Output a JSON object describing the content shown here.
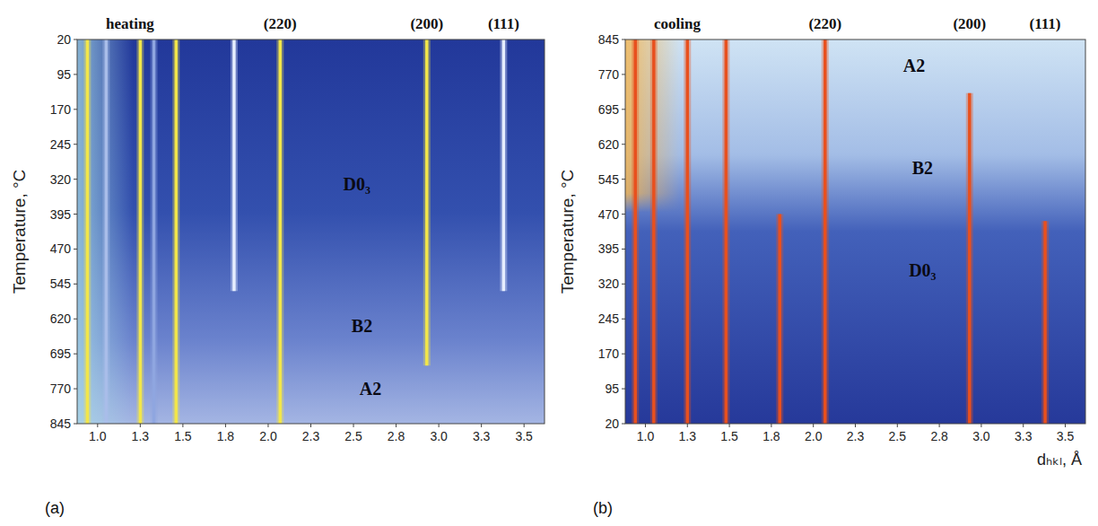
{
  "chart_data": [
    {
      "type": "line",
      "title": "heating",
      "panel": "(a)",
      "ylabel": "Temperature, °C",
      "xlim": [
        0.88,
        3.62
      ],
      "ylim": [
        845,
        20
      ],
      "xticks": [
        {
          "value": 1.0,
          "label": "1.0"
        },
        {
          "value": 1.25,
          "label": "1.3"
        },
        {
          "value": 1.5,
          "label": "1.5"
        },
        {
          "value": 1.75,
          "label": "1.8"
        },
        {
          "value": 2.0,
          "label": "2.0"
        },
        {
          "value": 2.25,
          "label": "2.3"
        },
        {
          "value": 2.5,
          "label": "2.5"
        },
        {
          "value": 2.75,
          "label": "2.8"
        },
        {
          "value": 3.0,
          "label": "3.0"
        },
        {
          "value": 3.25,
          "label": "3.3"
        },
        {
          "value": 3.5,
          "label": "3.5"
        }
      ],
      "yticks": [
        20,
        95,
        170,
        245,
        320,
        395,
        470,
        545,
        620,
        695,
        770,
        845
      ],
      "series": [
        {
          "x": [
            0.94,
            0.94
          ],
          "values": [
            20,
            845
          ],
          "color": "#f2e64a"
        },
        {
          "x": [
            1.05,
            1.05
          ],
          "values": [
            20,
            845
          ],
          "color": "#a9bde9"
        },
        {
          "x": [
            1.25,
            1.25
          ],
          "values": [
            20,
            845
          ],
          "color": "#f2e64a"
        },
        {
          "x": [
            1.33,
            1.33
          ],
          "values": [
            20,
            845
          ],
          "color": "#8fa6e0"
        },
        {
          "x": [
            1.46,
            1.46
          ],
          "values": [
            20,
            845
          ],
          "color": "#f2e64a"
        },
        {
          "x": [
            1.8,
            1.8
          ],
          "values": [
            20,
            560
          ],
          "color": "#e6eeff"
        },
        {
          "x": [
            2.07,
            2.07
          ],
          "values": [
            20,
            845
          ],
          "color": "#f2e64a"
        },
        {
          "x": [
            2.93,
            2.93
          ],
          "values": [
            20,
            720
          ],
          "color": "#f2e64a"
        },
        {
          "x": [
            3.38,
            3.38
          ],
          "values": [
            20,
            560
          ],
          "color": "#e6eeff"
        }
      ],
      "peak_labels": [
        {
          "text": "(220)",
          "x": 2.07
        },
        {
          "text": "(200)",
          "x": 2.93
        },
        {
          "text": "(111)",
          "x": 3.38
        }
      ],
      "annotations": [
        {
          "text": "D0₃",
          "x": 2.52,
          "y": 330
        },
        {
          "text": "B2",
          "x": 2.55,
          "y": 635
        },
        {
          "text": "A2",
          "x": 2.6,
          "y": 770
        }
      ]
    },
    {
      "type": "line",
      "title": "cooling",
      "panel": "(b)",
      "ylabel": "Temperature, °C",
      "xlabel": "dₕₖₗ, Å",
      "xlim": [
        0.88,
        3.62
      ],
      "ylim": [
        20,
        845
      ],
      "xticks": [
        {
          "value": 1.0,
          "label": "1.0"
        },
        {
          "value": 1.25,
          "label": "1.3"
        },
        {
          "value": 1.5,
          "label": "1.5"
        },
        {
          "value": 1.75,
          "label": "1.8"
        },
        {
          "value": 2.0,
          "label": "2.0"
        },
        {
          "value": 2.25,
          "label": "2.3"
        },
        {
          "value": 2.5,
          "label": "2.5"
        },
        {
          "value": 2.75,
          "label": "2.8"
        },
        {
          "value": 3.0,
          "label": "3.0"
        },
        {
          "value": 3.25,
          "label": "3.3"
        },
        {
          "value": 3.5,
          "label": "3.5"
        }
      ],
      "yticks": [
        20,
        95,
        170,
        245,
        320,
        395,
        470,
        545,
        620,
        695,
        770,
        845
      ],
      "series": [
        {
          "x": [
            0.94,
            0.94
          ],
          "values": [
            20,
            845
          ],
          "color": "#e8501e"
        },
        {
          "x": [
            1.05,
            1.05
          ],
          "values": [
            20,
            845
          ],
          "color": "#e8501e"
        },
        {
          "x": [
            1.25,
            1.25
          ],
          "values": [
            20,
            845
          ],
          "color": "#e8501e"
        },
        {
          "x": [
            1.48,
            1.48
          ],
          "values": [
            20,
            845
          ],
          "color": "#e8501e"
        },
        {
          "x": [
            1.8,
            1.8
          ],
          "values": [
            20,
            470
          ],
          "color": "#e8501e"
        },
        {
          "x": [
            2.07,
            2.07
          ],
          "values": [
            20,
            845
          ],
          "color": "#e8501e"
        },
        {
          "x": [
            2.93,
            2.93
          ],
          "values": [
            20,
            730
          ],
          "color": "#e8501e"
        },
        {
          "x": [
            3.38,
            3.38
          ],
          "values": [
            20,
            455
          ],
          "color": "#e8501e"
        }
      ],
      "peak_labels": [
        {
          "text": "(220)",
          "x": 2.07
        },
        {
          "text": "(200)",
          "x": 2.93
        },
        {
          "text": "(111)",
          "x": 3.38
        }
      ],
      "annotations": [
        {
          "text": "A2",
          "x": 2.6,
          "y": 790
        },
        {
          "text": "B2",
          "x": 2.65,
          "y": 570
        },
        {
          "text": "D0₃",
          "x": 2.65,
          "y": 350
        }
      ]
    }
  ]
}
